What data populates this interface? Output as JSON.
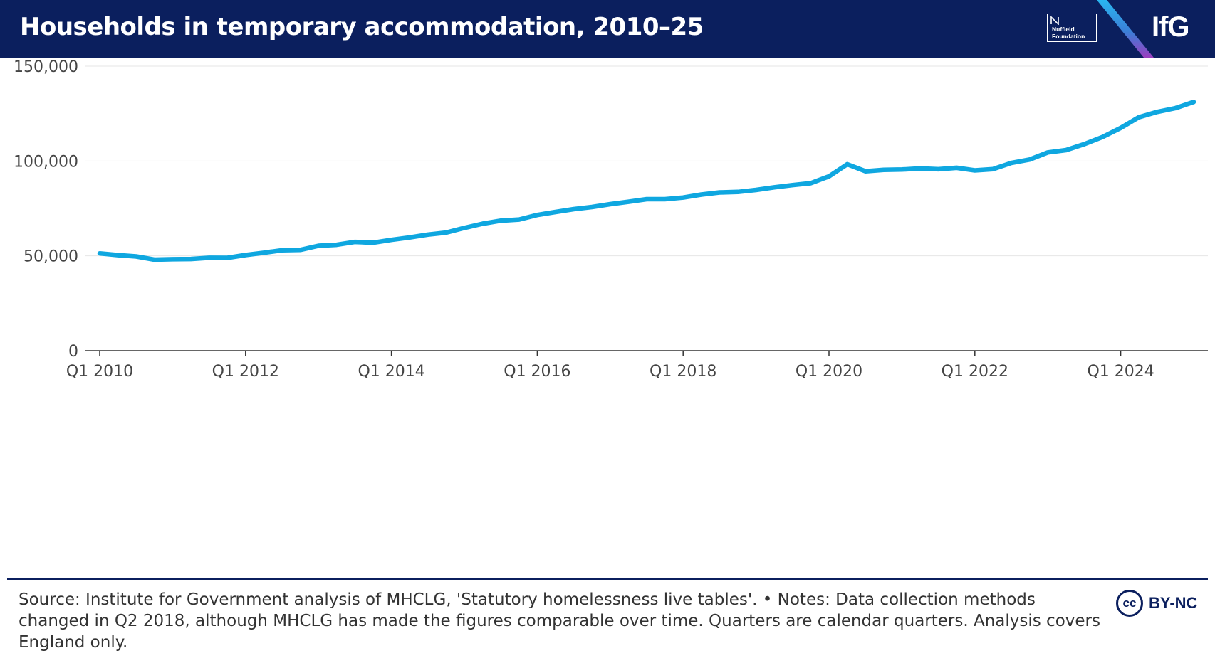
{
  "header": {
    "title": "Households in temporary accommodation, 2010–25",
    "partner_logo_text": "Nuffield Foundation",
    "brand_logo_text": "IfG"
  },
  "chart_data": {
    "type": "line",
    "title": "Households in temporary accommodation, 2010–25",
    "xlabel": "",
    "ylabel": "",
    "ylim": [
      0,
      150000
    ],
    "y_ticks": [
      0,
      50000,
      100000,
      150000
    ],
    "y_tick_labels": [
      "0",
      "50,000",
      "100,000",
      "150,000"
    ],
    "x_tick_labels": [
      "Q1 2010",
      "Q1 2012",
      "Q1 2014",
      "Q1 2016",
      "Q1 2018",
      "Q1 2020",
      "Q1 2022",
      "Q1 2024"
    ],
    "x_tick_positions": [
      0,
      8,
      16,
      24,
      32,
      40,
      48,
      56
    ],
    "grid": true,
    "series": [
      {
        "name": "Households in temporary accommodation",
        "color": "#0fa7e0",
        "quarters": [
          "Q1 2010",
          "Q2 2010",
          "Q3 2010",
          "Q4 2010",
          "Q1 2011",
          "Q2 2011",
          "Q3 2011",
          "Q4 2011",
          "Q1 2012",
          "Q2 2012",
          "Q3 2012",
          "Q4 2012",
          "Q1 2013",
          "Q2 2013",
          "Q3 2013",
          "Q4 2013",
          "Q1 2014",
          "Q2 2014",
          "Q3 2014",
          "Q4 2014",
          "Q1 2015",
          "Q2 2015",
          "Q3 2015",
          "Q4 2015",
          "Q1 2016",
          "Q2 2016",
          "Q3 2016",
          "Q4 2016",
          "Q1 2017",
          "Q2 2017",
          "Q3 2017",
          "Q4 2017",
          "Q1 2018",
          "Q2 2018",
          "Q3 2018",
          "Q4 2018",
          "Q1 2019",
          "Q2 2019",
          "Q3 2019",
          "Q4 2019",
          "Q1 2020",
          "Q2 2020",
          "Q3 2020",
          "Q4 2020",
          "Q1 2021",
          "Q2 2021",
          "Q3 2021",
          "Q4 2021",
          "Q1 2022",
          "Q2 2022",
          "Q3 2022",
          "Q4 2022",
          "Q1 2023",
          "Q2 2023",
          "Q3 2023",
          "Q4 2023",
          "Q1 2024",
          "Q2 2024",
          "Q3 2024",
          "Q4 2024",
          "Q1 2025"
        ],
        "values": [
          51310,
          50400,
          49680,
          48010,
          48240,
          48330,
          48960,
          48920,
          50430,
          51640,
          52960,
          53130,
          55300,
          55840,
          57350,
          56940,
          58440,
          59710,
          61190,
          62240,
          64710,
          66940,
          68560,
          69140,
          71540,
          73120,
          74630,
          75740,
          77240,
          78540,
          79880,
          79880,
          80720,
          82310,
          83450,
          83700,
          84740,
          86130,
          87310,
          88330,
          91930,
          98300,
          94610,
          95370,
          95530,
          96060,
          95680,
          96410,
          95060,
          95750,
          98950,
          100760,
          104510,
          105750,
          108900,
          112660,
          117450,
          123100,
          125880,
          127890,
          131140
        ]
      }
    ]
  },
  "footer": {
    "source_text": "Source: Institute for Government analysis of MHCLG, 'Statutory homelessness live tables'. • Notes: Data collection methods changed in Q2 2018, although MHCLG has made the figures comparable over time. Quarters are calendar quarters. Analysis covers England only.",
    "license_icon_text": "cc",
    "license_text": "BY-NC"
  }
}
